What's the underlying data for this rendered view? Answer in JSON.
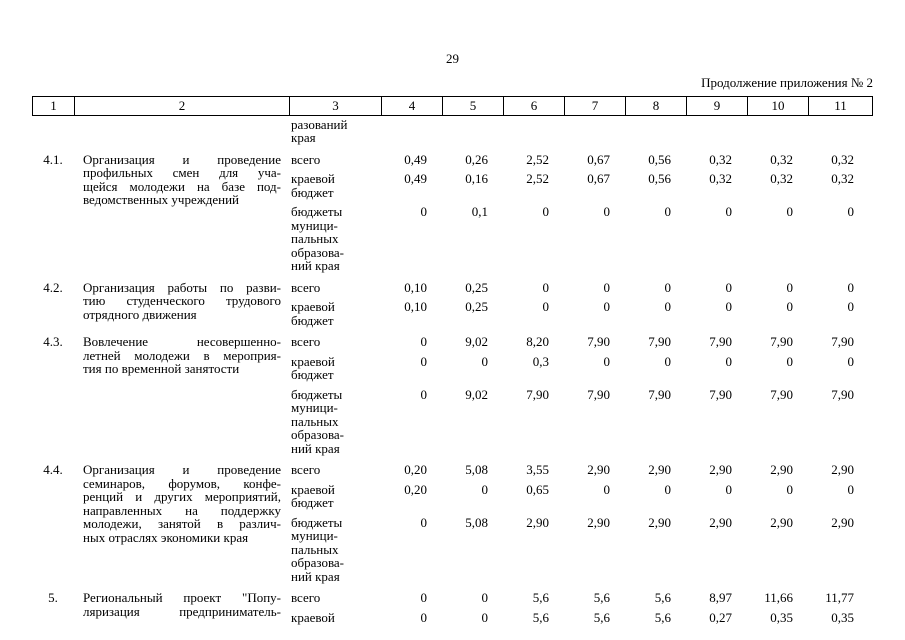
{
  "page": {
    "number": "29",
    "continuation": "Продолжение приложения № 2"
  },
  "table": {
    "column_numbers": [
      "1",
      "2",
      "3",
      "4",
      "5",
      "6",
      "7",
      "8",
      "9",
      "10",
      "11"
    ],
    "carryover_label_lines": [
      "разований",
      "края"
    ],
    "rows": [
      {
        "num": "4.1.",
        "desc_lines": [
          "Организация и проведение",
          "профильных смен для уча-",
          "щейся молодежи на базе под-",
          "ведомственных учреждений"
        ],
        "last_line_justified": false,
        "subrows": [
          {
            "label_lines": [
              "всего"
            ],
            "values": [
              "0,49",
              "0,26",
              "2,52",
              "0,67",
              "0,56",
              "0,32",
              "0,32",
              "0,32"
            ]
          },
          {
            "label_lines": [
              "краевой",
              "бюджет"
            ],
            "values": [
              "0,49",
              "0,16",
              "2,52",
              "0,67",
              "0,56",
              "0,32",
              "0,32",
              "0,32"
            ]
          },
          {
            "label_lines": [
              "бюджеты",
              "муници-",
              "пальных",
              "образова-",
              "ний края"
            ],
            "values": [
              "0",
              "0,1",
              "0",
              "0",
              "0",
              "0",
              "0",
              "0"
            ]
          }
        ]
      },
      {
        "num": "4.2.",
        "desc_lines": [
          "Организация работы по разви-",
          "тию студенческого трудового",
          "отрядного движения"
        ],
        "last_line_justified": false,
        "subrows": [
          {
            "label_lines": [
              "всего"
            ],
            "values": [
              "0,10",
              "0,25",
              "0",
              "0",
              "0",
              "0",
              "0",
              "0"
            ]
          },
          {
            "label_lines": [
              "краевой",
              "бюджет"
            ],
            "values": [
              "0,10",
              "0,25",
              "0",
              "0",
              "0",
              "0",
              "0",
              "0"
            ]
          }
        ]
      },
      {
        "num": "4.3.",
        "desc_lines": [
          "Вовлечение несовершенно-",
          "летней молодежи в мероприя-",
          "тия по временной занятости"
        ],
        "last_line_justified": false,
        "subrows": [
          {
            "label_lines": [
              "всего"
            ],
            "values": [
              "0",
              "9,02",
              "8,20",
              "7,90",
              "7,90",
              "7,90",
              "7,90",
              "7,90"
            ]
          },
          {
            "label_lines": [
              "краевой",
              "бюджет"
            ],
            "values": [
              "0",
              "0",
              "0,3",
              "0",
              "0",
              "0",
              "0",
              "0"
            ]
          },
          {
            "label_lines": [
              "бюджеты",
              "муници-",
              "пальных",
              "образова-",
              "ний края"
            ],
            "values": [
              "0",
              "9,02",
              "7,90",
              "7,90",
              "7,90",
              "7,90",
              "7,90",
              "7,90"
            ]
          }
        ]
      },
      {
        "num": "4.4.",
        "desc_lines": [
          "Организация и проведение",
          "семинаров, форумов, конфе-",
          "ренций и других мероприятий,",
          "направленных на поддержку",
          "молодежи, занятой в различ-",
          "ных отраслях экономики края"
        ],
        "last_line_justified": false,
        "subrows": [
          {
            "label_lines": [
              "всего"
            ],
            "values": [
              "0,20",
              "5,08",
              "3,55",
              "2,90",
              "2,90",
              "2,90",
              "2,90",
              "2,90"
            ]
          },
          {
            "label_lines": [
              "краевой",
              "бюджет"
            ],
            "values": [
              "0,20",
              "0",
              "0,65",
              "0",
              "0",
              "0",
              "0",
              "0"
            ]
          },
          {
            "label_lines": [
              "бюджеты",
              "муници-",
              "пальных",
              "образова-",
              "ний края"
            ],
            "values": [
              "0",
              "5,08",
              "2,90",
              "2,90",
              "2,90",
              "2,90",
              "2,90",
              "2,90"
            ]
          }
        ]
      },
      {
        "num": "5.",
        "desc_lines": [
          "Региональный проект \"Попу-",
          "ляризация предприниматель-"
        ],
        "last_line_justified": true,
        "subrows": [
          {
            "label_lines": [
              "всего"
            ],
            "values": [
              "0",
              "0",
              "5,6",
              "5,6",
              "5,6",
              "8,97",
              "11,66",
              "11,77"
            ]
          },
          {
            "label_lines": [
              "краевой"
            ],
            "values": [
              "0",
              "0",
              "5,6",
              "5,6",
              "5,6",
              "0,27",
              "0,35",
              "0,35"
            ]
          }
        ]
      }
    ]
  }
}
